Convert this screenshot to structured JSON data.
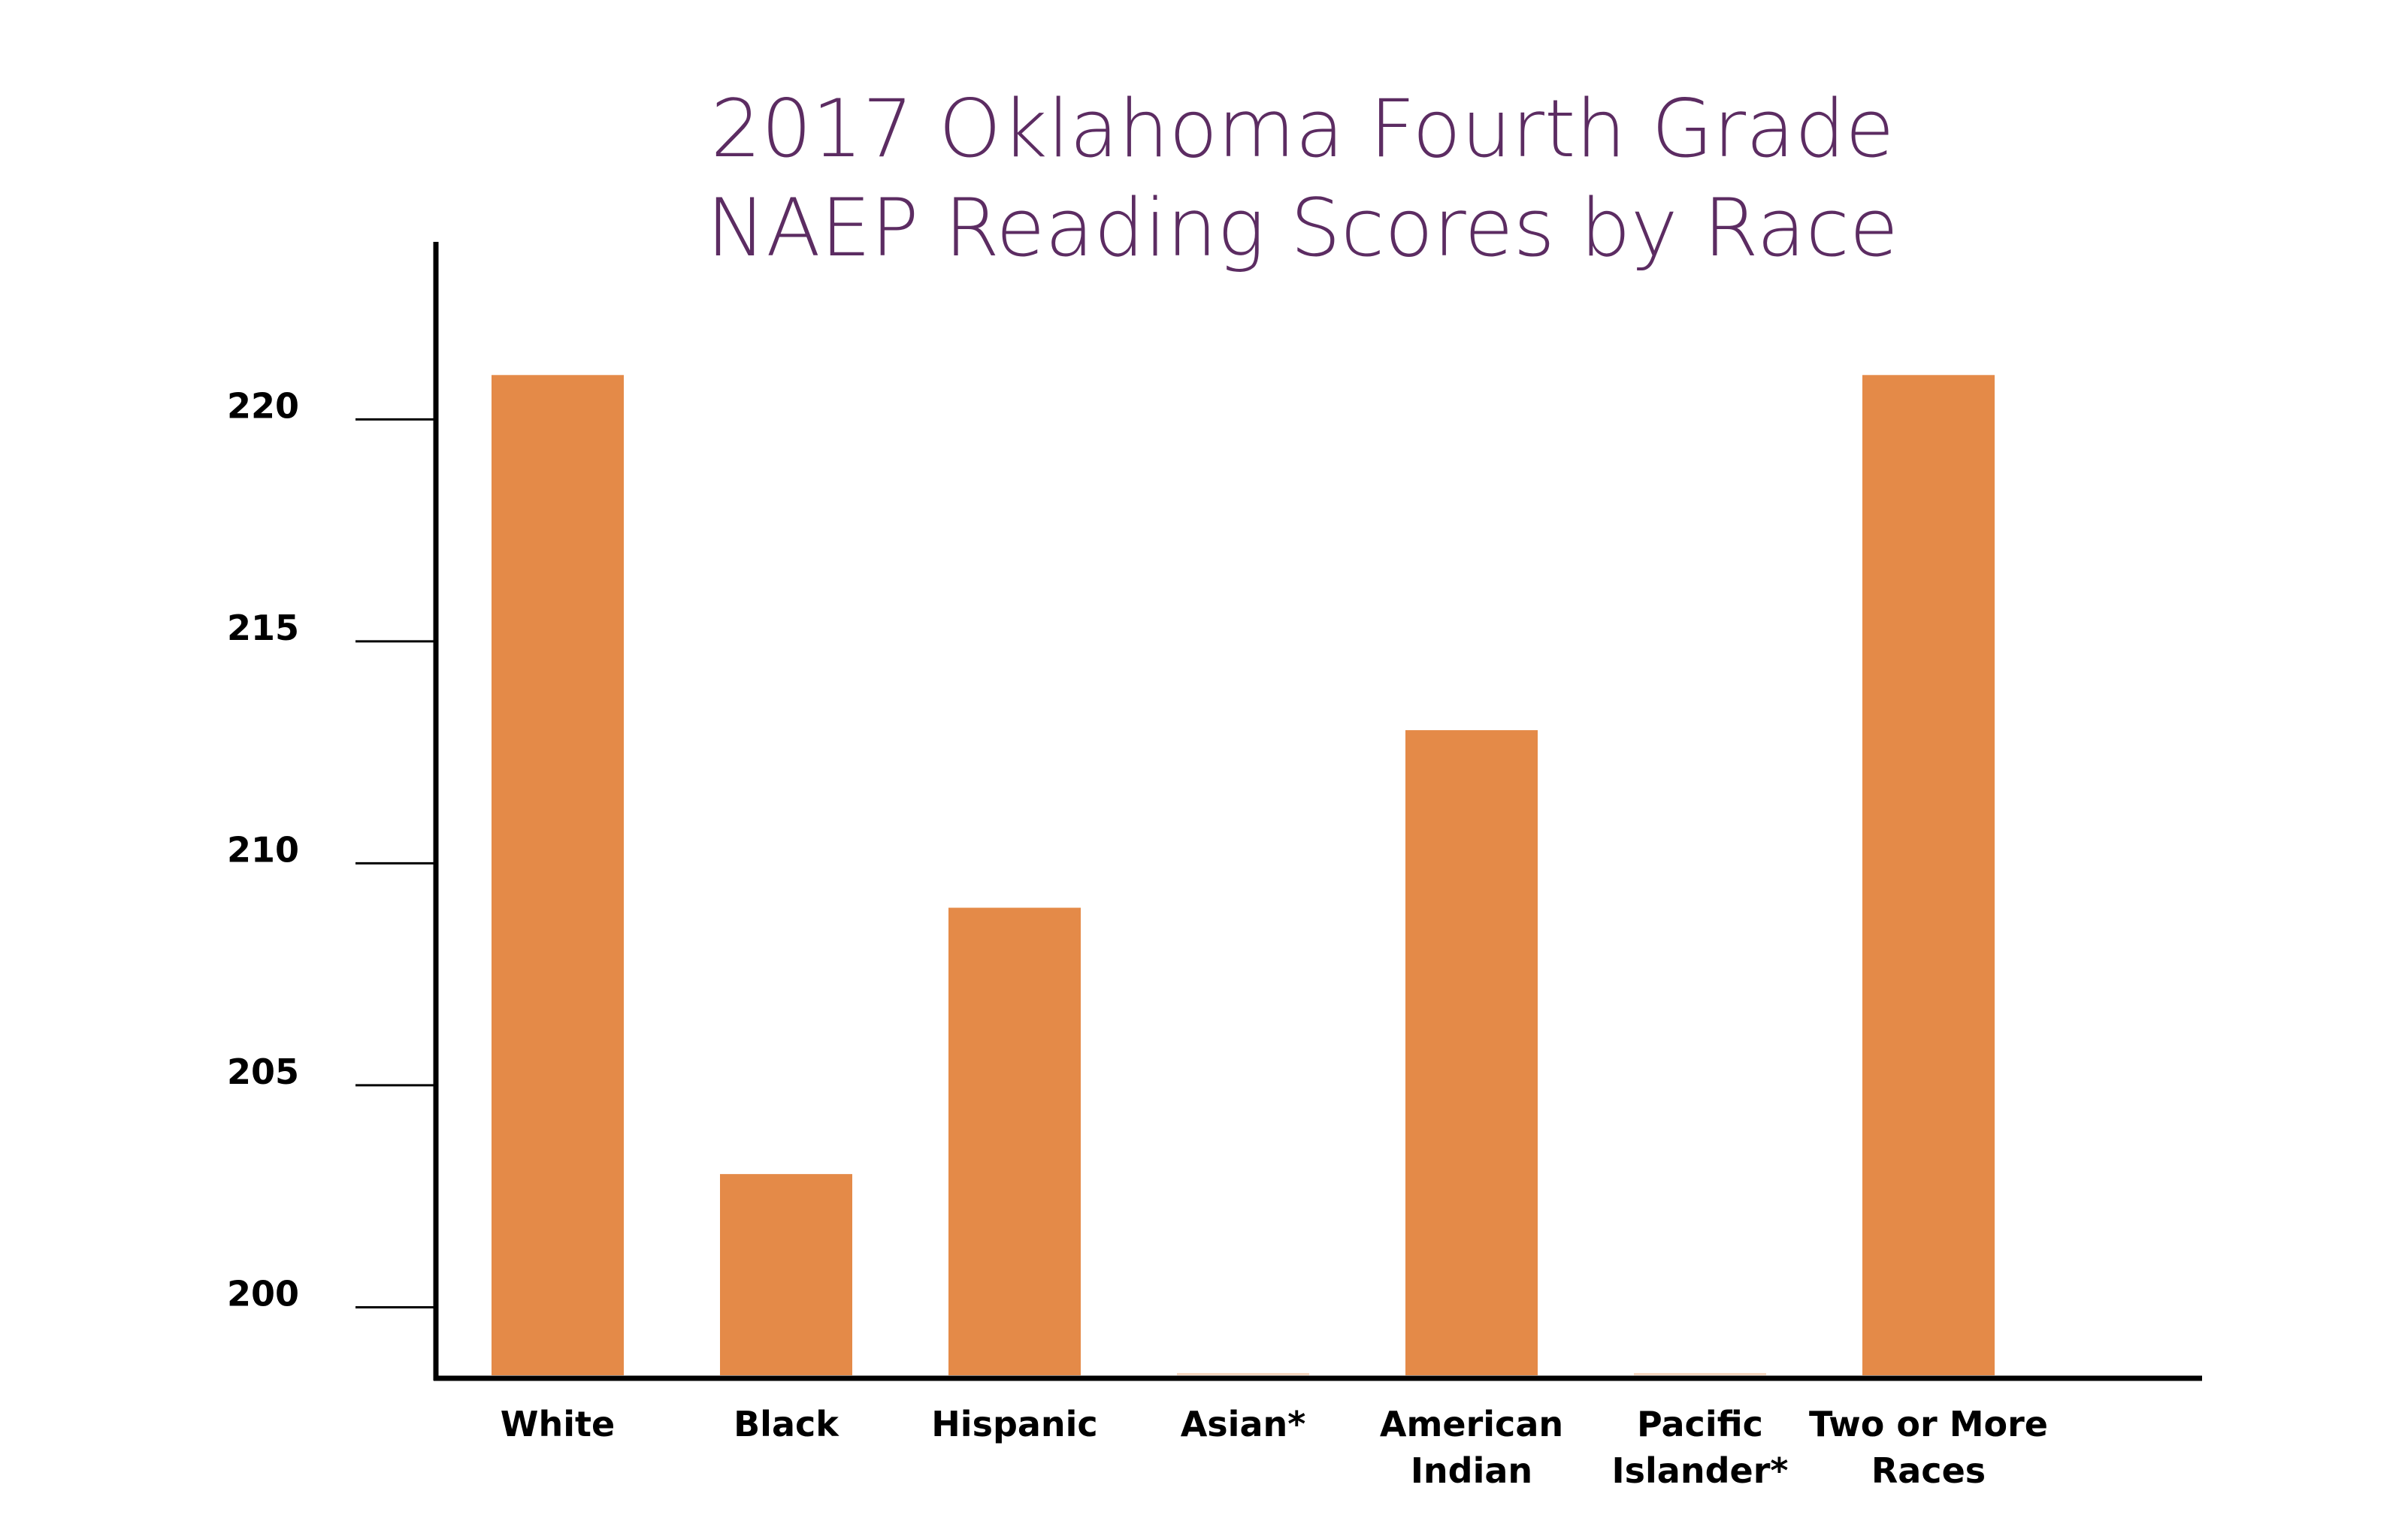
{
  "chart_data": {
    "type": "bar",
    "title": [
      "2017 Oklahoma Fourth Grade",
      "NAEP Reading Scores by Race"
    ],
    "xlabel": "",
    "ylabel": "",
    "categories": [
      [
        "White"
      ],
      [
        "Black"
      ],
      [
        "Hispanic"
      ],
      [
        "Asian*"
      ],
      [
        "American",
        "Indian"
      ],
      [
        "Pacific",
        "Islander*"
      ],
      [
        "Two or More",
        "Races"
      ]
    ],
    "values": [
      221,
      203,
      209,
      null,
      213,
      null,
      221
    ],
    "y_ticks": [
      200,
      205,
      210,
      215,
      220
    ],
    "ylim": [
      198.4,
      224
    ],
    "grid": false,
    "legend": "none",
    "colors": {
      "bar": "#E48A48",
      "title": "#5C2C62",
      "axis": "#000000",
      "text": "#000000"
    }
  }
}
